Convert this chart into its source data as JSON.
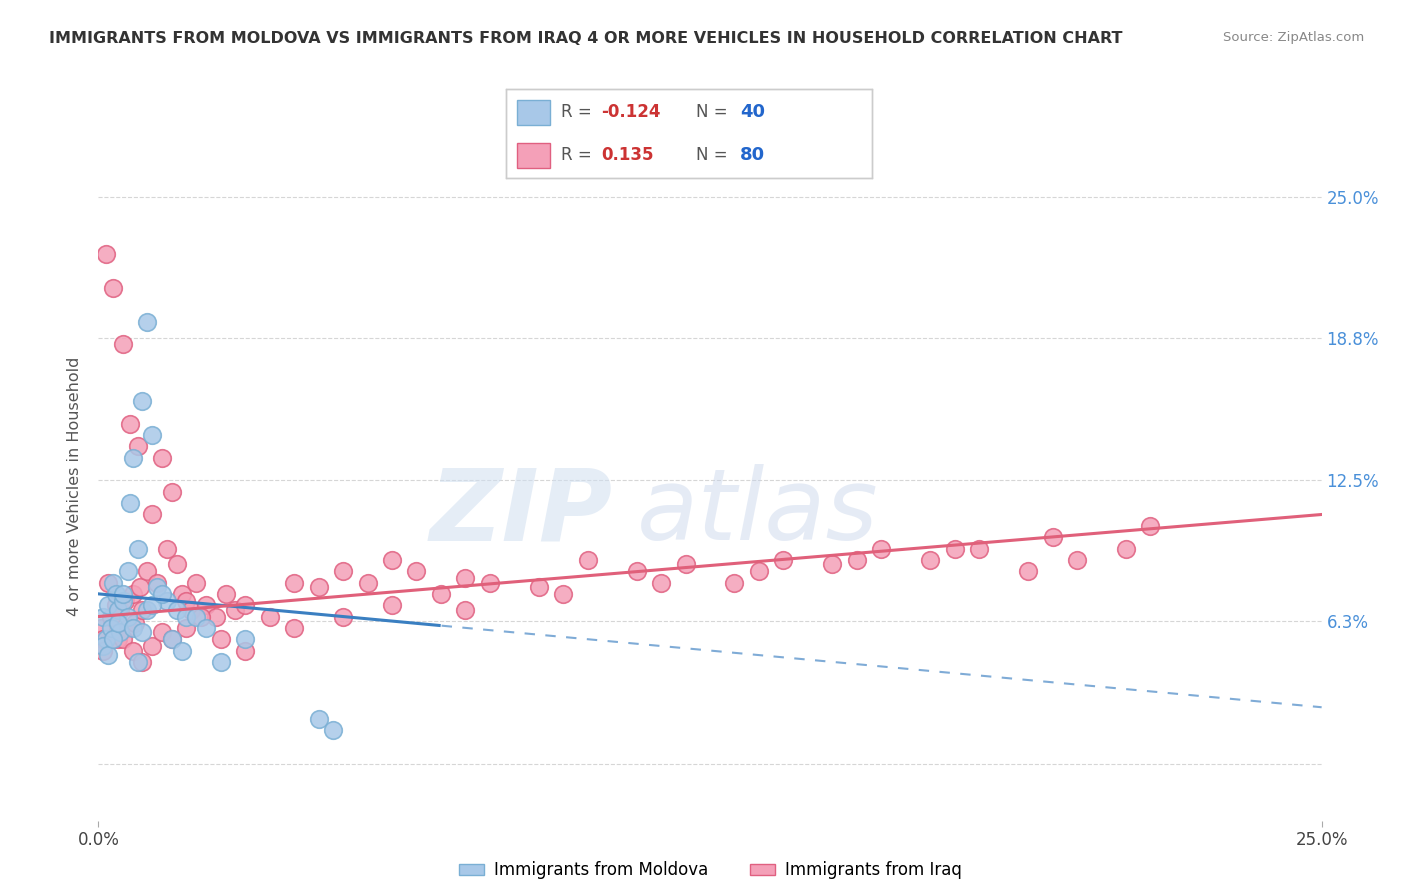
{
  "title": "IMMIGRANTS FROM MOLDOVA VS IMMIGRANTS FROM IRAQ 4 OR MORE VEHICLES IN HOUSEHOLD CORRELATION CHART",
  "source": "Source: ZipAtlas.com",
  "ylabel": "4 or more Vehicles in Household",
  "y_tick_values": [
    0.0,
    6.3,
    12.5,
    18.8,
    25.0
  ],
  "y_tick_labels": [
    "",
    "6.3%",
    "12.5%",
    "18.8%",
    "25.0%"
  ],
  "x_range": [
    0.0,
    25.0
  ],
  "y_range": [
    -2.5,
    27.0
  ],
  "moldova_color": "#a8c8e8",
  "moldova_edge_color": "#7aafd4",
  "iraq_color": "#f4a0b8",
  "iraq_edge_color": "#e06080",
  "trendline_moldova_color": "#3a7fc1",
  "trendline_iraq_color": "#e0607a",
  "moldova_R": -0.124,
  "moldova_N": 40,
  "iraq_R": 0.135,
  "iraq_N": 80,
  "legend_label_moldova": "Immigrants from Moldova",
  "legend_label_iraq": "Immigrants from Iraq",
  "watermark_zip": "ZIP",
  "watermark_atlas": "atlas",
  "moldova_scatter_x": [
    0.1,
    0.15,
    0.2,
    0.25,
    0.3,
    0.35,
    0.4,
    0.45,
    0.5,
    0.6,
    0.65,
    0.7,
    0.8,
    0.9,
    1.0,
    1.1,
    1.2,
    1.4,
    1.6,
    1.8,
    0.1,
    0.2,
    0.3,
    0.4,
    0.5,
    0.6,
    0.7,
    0.8,
    0.9,
    1.0,
    1.1,
    1.3,
    1.5,
    1.7,
    2.0,
    2.2,
    2.5,
    3.0,
    4.5,
    4.8
  ],
  "moldova_scatter_y": [
    6.5,
    5.5,
    7.0,
    6.0,
    8.0,
    7.5,
    6.8,
    5.8,
    7.2,
    6.5,
    11.5,
    13.5,
    9.5,
    16.0,
    19.5,
    14.5,
    7.8,
    7.2,
    6.8,
    6.5,
    5.2,
    4.8,
    5.5,
    6.2,
    7.5,
    8.5,
    6.0,
    4.5,
    5.8,
    6.8,
    7.0,
    7.5,
    5.5,
    5.0,
    6.5,
    6.0,
    4.5,
    5.5,
    2.0,
    1.5
  ],
  "iraq_scatter_x": [
    0.05,
    0.1,
    0.15,
    0.2,
    0.25,
    0.3,
    0.35,
    0.4,
    0.45,
    0.5,
    0.55,
    0.6,
    0.65,
    0.7,
    0.75,
    0.8,
    0.85,
    0.9,
    1.0,
    1.1,
    1.2,
    1.3,
    1.4,
    1.5,
    1.6,
    1.7,
    1.8,
    1.9,
    2.0,
    2.2,
    2.4,
    2.6,
    2.8,
    3.0,
    3.5,
    4.0,
    4.5,
    5.0,
    5.5,
    6.0,
    6.5,
    7.0,
    7.5,
    8.0,
    9.0,
    10.0,
    11.0,
    12.0,
    13.0,
    14.0,
    15.0,
    16.0,
    17.0,
    18.0,
    19.0,
    20.0,
    21.0,
    0.1,
    0.3,
    0.5,
    0.7,
    0.9,
    1.1,
    1.3,
    1.5,
    1.8,
    2.1,
    2.5,
    3.0,
    4.0,
    5.0,
    6.0,
    7.5,
    9.5,
    11.5,
    13.5,
    15.5,
    17.5,
    19.5,
    21.5
  ],
  "iraq_scatter_y": [
    6.0,
    5.5,
    22.5,
    8.0,
    6.5,
    21.0,
    7.0,
    5.5,
    6.8,
    18.5,
    7.2,
    6.0,
    15.0,
    7.5,
    6.2,
    14.0,
    7.8,
    6.8,
    8.5,
    11.0,
    8.0,
    13.5,
    9.5,
    12.0,
    8.8,
    7.5,
    7.2,
    6.8,
    8.0,
    7.0,
    6.5,
    7.5,
    6.8,
    7.0,
    6.5,
    8.0,
    7.8,
    8.5,
    8.0,
    9.0,
    8.5,
    7.5,
    8.2,
    8.0,
    7.8,
    9.0,
    8.5,
    8.8,
    8.0,
    9.0,
    8.8,
    9.5,
    9.0,
    9.5,
    8.5,
    9.0,
    9.5,
    5.0,
    5.5,
    5.5,
    5.0,
    4.5,
    5.2,
    5.8,
    5.5,
    6.0,
    6.5,
    5.5,
    5.0,
    6.0,
    6.5,
    7.0,
    6.8,
    7.5,
    8.0,
    8.5,
    9.0,
    9.5,
    10.0,
    10.5
  ]
}
